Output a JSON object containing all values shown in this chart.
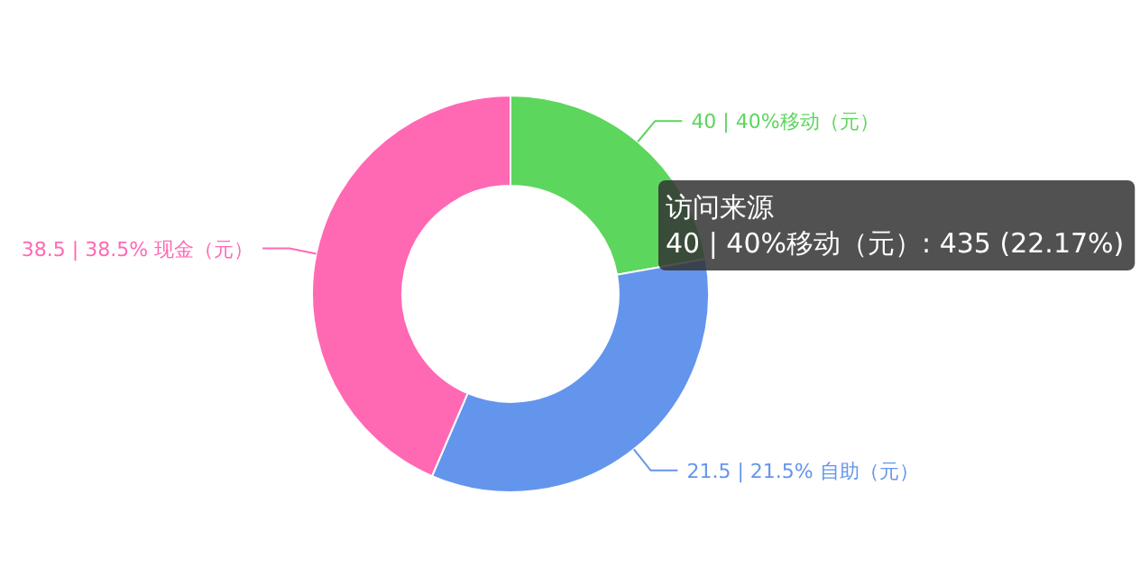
{
  "chart_data": {
    "type": "donut",
    "categories": [
      "40 | 40%移动（元）",
      "21.5 | 21.5% 自助（元）",
      "38.5 | 38.5% 现金（元）"
    ],
    "values": [
      22.17,
      34.3,
      43.53
    ],
    "colors": [
      "#5cd65c",
      "#6495ed",
      "#ff69b4"
    ],
    "annotations": [
      "访问来源",
      "40 | 40%移动（元）: 435 (22.17%)"
    ]
  }
}
